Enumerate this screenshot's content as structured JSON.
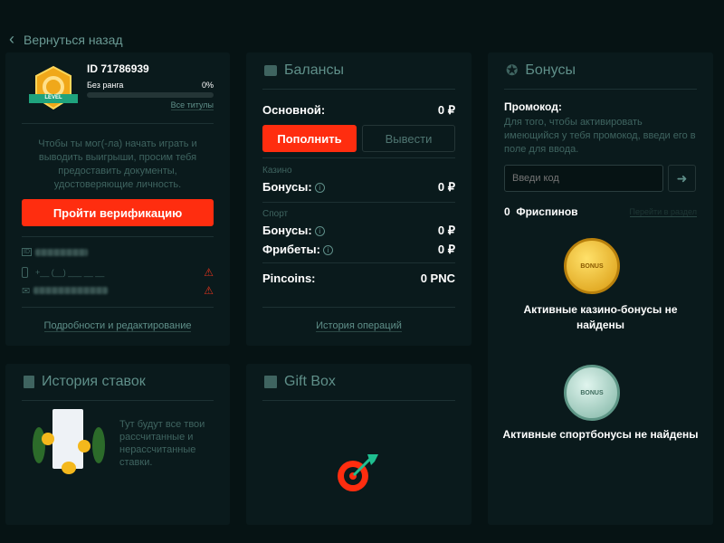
{
  "back": {
    "label": "Вернуться назад"
  },
  "profile": {
    "id": "ID 71786939",
    "rank": "Без ранга",
    "progress_pct": 0,
    "progress_label": "0%",
    "all_titles": "Все титулы",
    "badge_text": "LEVEL",
    "verify_text": "Чтобы ты мог(-ла) начать играть и выводить выигрыши, просим тебя предоставить документы, удостоверяющие личность.",
    "verify_button": "Пройти верификацию",
    "phone_placeholder": "+__ (__) ___ __ __",
    "details_link": "Подробности и редактирование"
  },
  "balances": {
    "title": "Балансы",
    "main_label": "Основной:",
    "main_value": "0 ₽",
    "deposit": "Пополнить",
    "withdraw": "Вывести",
    "casino_label": "Казино",
    "casino_bonus_label": "Бонусы:",
    "casino_bonus_value": "0 ₽",
    "sport_label": "Спорт",
    "sport_bonus_label": "Бонусы:",
    "sport_bonus_value": "0 ₽",
    "freebets_label": "Фрибеты:",
    "freebets_value": "0 ₽",
    "pincoins_label": "Pincoins:",
    "pincoins_value": "0 PNC",
    "history_link": "История операций"
  },
  "bonuses": {
    "title": "Бонусы",
    "promo_title": "Промокод:",
    "promo_text": "Для того, чтобы активировать имеющийся у тебя промокод, введи его в поле для ввода.",
    "promo_placeholder": "Введи код",
    "freespins_count": "0",
    "freespins_label": "Фриспинов",
    "goto_section": "Перейти в раздел",
    "casino_empty": "Активные казино-бонусы не найдены",
    "sport_empty": "Активные спортбонусы не найдены",
    "coin_label": "BONUS"
  },
  "bets": {
    "title": "История ставок",
    "text": "Тут будут все твои рассчитанные и нерассчитанные ставки."
  },
  "giftbox": {
    "title": "Gift Box"
  },
  "colors": {
    "accent": "#ff2d0f",
    "bg": "#061314",
    "card": "#0a1a1c",
    "muted": "#5f8f89"
  }
}
